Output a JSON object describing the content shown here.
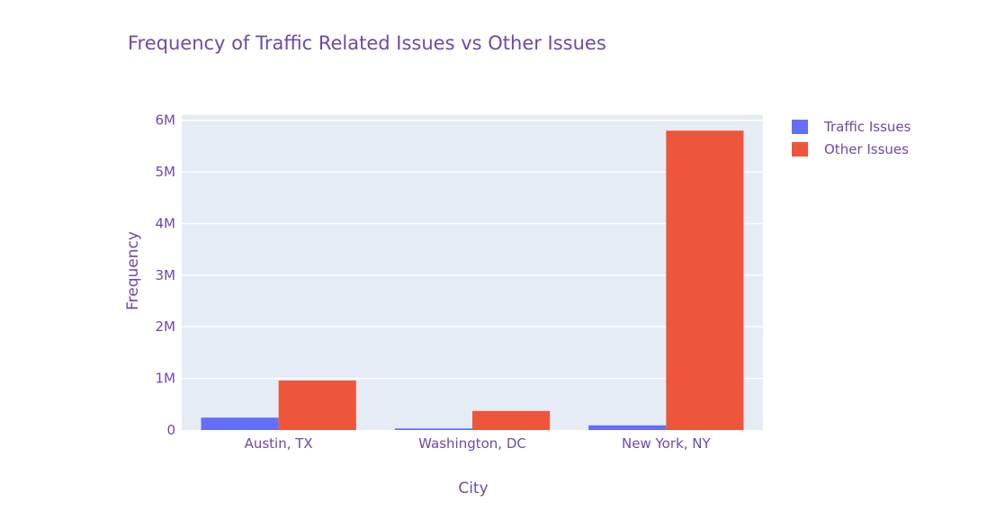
{
  "chart_data": {
    "type": "bar",
    "title": "Frequency of Traffic Related Issues vs Other Issues",
    "xlabel": "City",
    "ylabel": "Frequency",
    "categories": [
      "Austin, TX",
      "Washington, DC",
      "New York, NY"
    ],
    "series": [
      {
        "name": "Traffic Issues",
        "values": [
          240000,
          30000,
          90000
        ],
        "color": "#636efa"
      },
      {
        "name": "Other Issues",
        "values": [
          960000,
          370000,
          5800000
        ],
        "color": "#ef553b"
      }
    ],
    "ylim": [
      0,
      6100000
    ],
    "yticks": [
      0,
      1000000,
      2000000,
      3000000,
      4000000,
      5000000,
      6000000
    ],
    "ytick_labels": [
      "0",
      "1M",
      "2M",
      "3M",
      "4M",
      "5M",
      "6M"
    ],
    "grid": true,
    "legend_position": "top-right",
    "plot_background": "#e5ecf6",
    "text_color": "#6f49a8"
  }
}
